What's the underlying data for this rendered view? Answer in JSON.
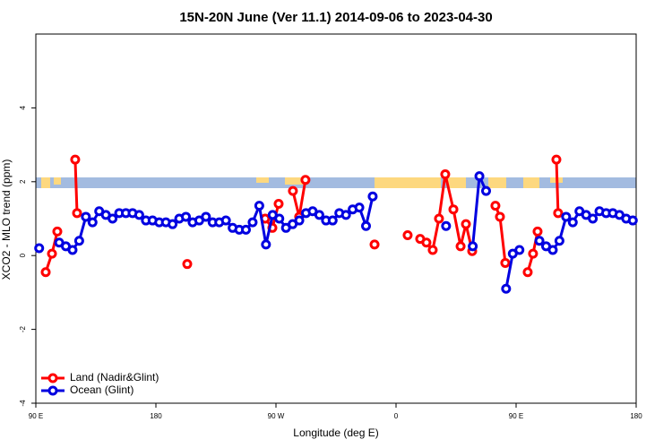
{
  "chart_data": {
    "type": "line",
    "title": "15N-20N June (Ver 11.1)   2014-09-06 to 2023-04-30",
    "x_label": "Longitude (deg E)",
    "y_label": "XCO2 - MLO trend (ppm)",
    "xlim": [
      90,
      540
    ],
    "ylim": [
      -4,
      6
    ],
    "xticks": [
      {
        "value": 90,
        "label": "90 E"
      },
      180,
      {
        "value": 270,
        "label": "90 W"
      },
      {
        "value": 360,
        "label": "0"
      },
      {
        "value": 450,
        "label": "90 E"
      },
      {
        "value": 540,
        "label": "180"
      }
    ],
    "yticks": [
      -4,
      -2,
      0,
      2,
      4
    ],
    "legend": "bottom-left",
    "series": [
      {
        "name": "Land (Nadir&Glint)",
        "color": "#ff0000",
        "x": [
          97.4,
          102.1,
          106.1,
          112,
          119.5,
          120.9,
          160,
          203.5,
          230,
          261.9,
          267.3,
          272.0,
          277,
          282.7,
          287.4,
          292.1,
          320,
          343.9,
          355,
          368.7,
          373,
          378.1,
          382.8,
          387.5,
          392.2,
          396.9,
          403.0,
          408.4,
          412.4,
          417.1,
          425,
          434.5,
          437.9,
          441.9,
          450,
          458.7,
          462.7,
          466.1,
          473,
          480.2,
          481.5
        ],
        "values": [
          -0.45,
          0.05,
          0.65,
          null,
          2.6,
          1.15,
          null,
          -0.23,
          null,
          1.0,
          0.75,
          1.4,
          null,
          1.75,
          1.05,
          2.05,
          null,
          0.3,
          null,
          0.55,
          null,
          0.45,
          0.35,
          0.15,
          1.0,
          2.2,
          1.25,
          0.25,
          0.85,
          0.12,
          null,
          1.35,
          1.05,
          -0.2,
          null,
          -0.45,
          0.05,
          0.65,
          null,
          2.6,
          1.15
        ]
      },
      {
        "name": "Ocean (Glint)",
        "color": "#0000e0",
        "x": [
          92.5,
          97.5,
          107.5,
          112.5,
          117.5,
          122.5,
          127.5,
          132.5,
          137.5,
          142.5,
          147.5,
          152.5,
          157.5,
          162.5,
          167.5,
          172.5,
          177.5,
          182.5,
          187.5,
          192.5,
          197.5,
          202.5,
          207.5,
          212.5,
          217.5,
          222.5,
          227.5,
          232.5,
          237.5,
          242.5,
          247.5,
          252.5,
          257.5,
          262.5,
          267.5,
          272.5,
          277.5,
          282.5,
          287.5,
          292.5,
          297.5,
          302.5,
          307.5,
          312.5,
          317.5,
          322.5,
          327.5,
          332.5,
          337.5,
          342.5,
          347.5,
          372.5,
          397.5,
          407.5,
          417.5,
          422.5,
          427.5,
          432.5,
          442.5,
          447.5,
          452.5,
          457.5,
          467.5,
          472.5,
          477.5,
          482.5,
          487.5,
          492.5,
          497.5,
          502.5,
          507.5,
          512.5,
          517.5,
          522.5,
          527.5,
          532.5,
          537.5
        ],
        "values": [
          0.2,
          null,
          0.35,
          0.25,
          0.15,
          0.4,
          1.05,
          0.9,
          1.2,
          1.1,
          1.0,
          1.15,
          1.15,
          1.15,
          1.1,
          0.95,
          0.95,
          0.9,
          0.9,
          0.85,
          1.0,
          1.05,
          0.9,
          0.95,
          1.05,
          0.9,
          0.9,
          0.95,
          0.75,
          0.7,
          0.7,
          0.9,
          1.35,
          0.3,
          1.1,
          1.0,
          0.75,
          0.85,
          0.95,
          1.15,
          1.2,
          1.1,
          0.95,
          0.95,
          1.15,
          1.1,
          1.25,
          1.3,
          0.8,
          1.6,
          null,
          null,
          0.8,
          null,
          0.25,
          2.15,
          1.75,
          null,
          -0.9,
          0.05,
          0.15,
          null,
          0.4,
          0.25,
          0.15,
          0.4,
          1.05,
          0.9,
          1.2,
          1.1,
          1.0,
          1.2,
          1.15,
          1.15,
          1.1,
          1.0,
          0.95
        ]
      }
    ]
  }
}
